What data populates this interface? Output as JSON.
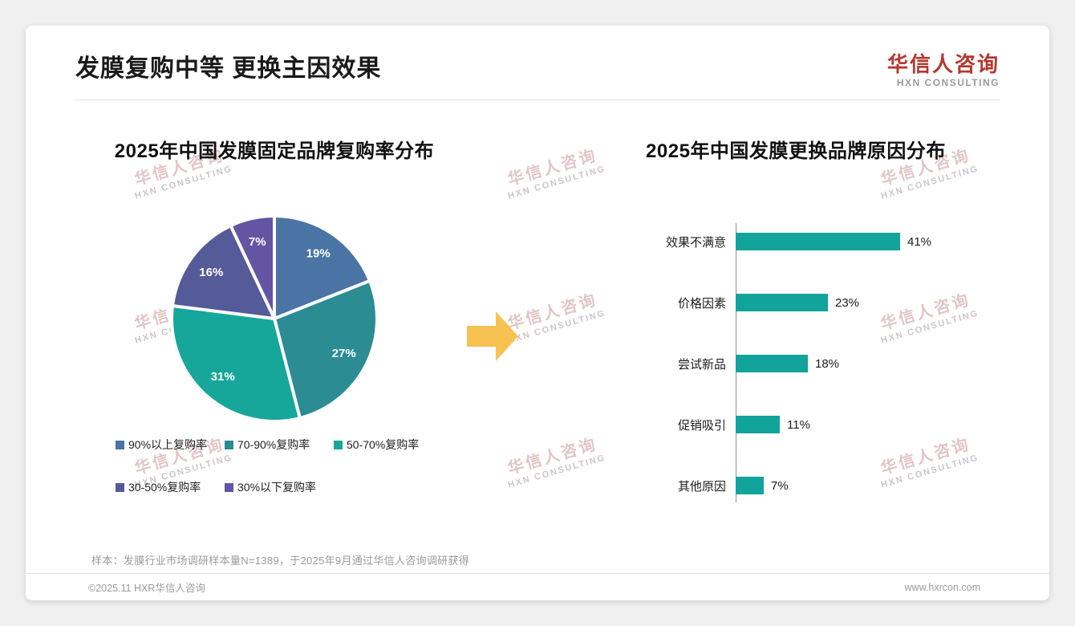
{
  "page": {
    "title": "发膜复购中等 更换主因效果",
    "logo": {
      "name": "华信人咨询",
      "tagline": "HXN CONSULTING"
    },
    "watermark": {
      "line1": "华信人咨询",
      "line2": "HXN CONSULTING"
    },
    "footnote": "样本：发膜行业市场调研样本量N=1389，于2025年9月通过华信人咨询调研获得",
    "footer": {
      "left": "©2025.11 HXR华信人咨询",
      "right": "www.hxrcon.com"
    }
  },
  "chart_data": [
    {
      "type": "pie",
      "title": "2025年中国发膜固定品牌复购率分布",
      "labels": [
        "90%以上复购率",
        "70-90%复购率",
        "50-70%复购率",
        "30-50%复购率",
        "30%以下复购率"
      ],
      "values": [
        19,
        27,
        31,
        16,
        7
      ],
      "unit": "%",
      "colors": [
        "#4A74A4",
        "#2B8C94",
        "#16A69A",
        "#555A99",
        "#6355A3"
      ],
      "start_angle": -90,
      "direction": "clockwise",
      "legend_position": "bottom"
    },
    {
      "type": "bar",
      "orientation": "horizontal",
      "title": "2025年中国发膜更换品牌原因分布",
      "categories": [
        "效果不满意",
        "价格因素",
        "尝试新品",
        "促销吸引",
        "其他原因"
      ],
      "values": [
        41,
        23,
        18,
        11,
        7
      ],
      "unit": "%",
      "bar_color": "#12A39B",
      "xlim": [
        0,
        50
      ],
      "value_labels": true
    }
  ],
  "arrow_color": "#F7C252"
}
